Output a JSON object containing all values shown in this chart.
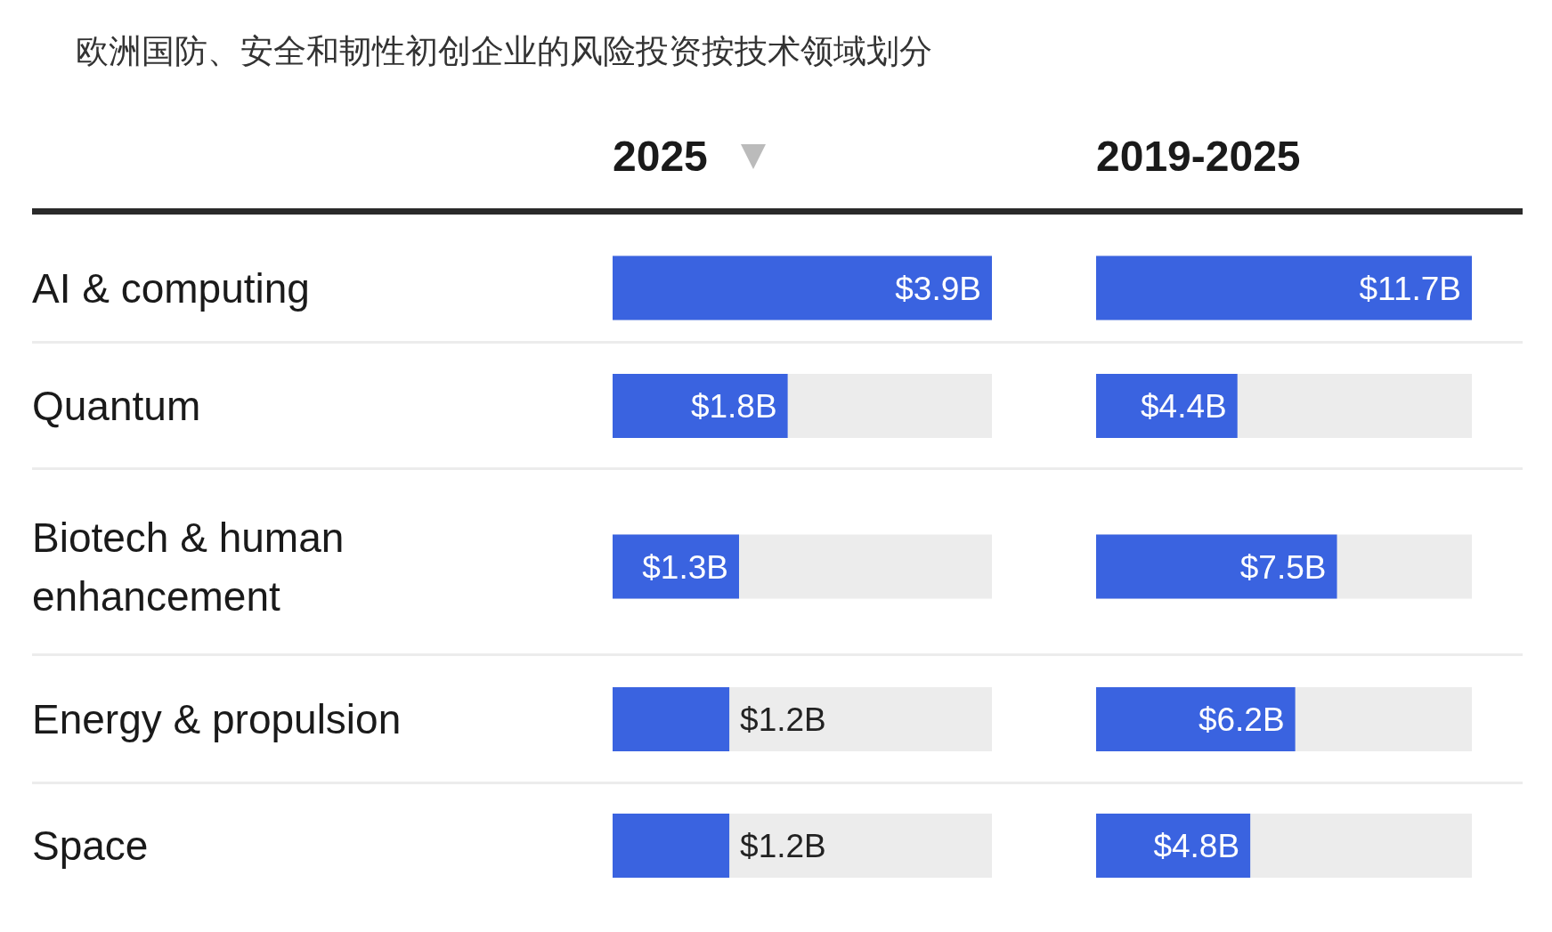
{
  "chart_data": [
    {
      "type": "bar",
      "orientation": "horizontal",
      "title": "欧洲国防、安全和韧性初创企业的风险投资按技术领域划分",
      "subtitle": "2025",
      "categories": [
        "AI & computing",
        "Quantum",
        "Biotech & human enhancement",
        "Energy & propulsion",
        "Space"
      ],
      "values": [
        3.9,
        1.8,
        1.3,
        1.2,
        1.2
      ],
      "value_labels": [
        "$3.9B",
        "$1.8B",
        "$1.3B",
        "$1.2B",
        "$1.2B"
      ],
      "color": "#3a63e0",
      "xlim": [
        0,
        3.9
      ],
      "tick_labels": "y"
    },
    {
      "type": "bar",
      "orientation": "horizontal",
      "subtitle": "2019-2025",
      "categories": [
        null,
        null,
        null,
        null,
        null
      ],
      "values": [
        11.7,
        4.4,
        7.5,
        6.2,
        4.8
      ],
      "value_labels": [
        "$11.7B",
        "$4.4B",
        "$7.5B",
        "$6.2B",
        "$4.8B"
      ],
      "color": "#3a63e0",
      "xlim": [
        0,
        11.7
      ],
      "tick_labels": false
    }
  ]
}
